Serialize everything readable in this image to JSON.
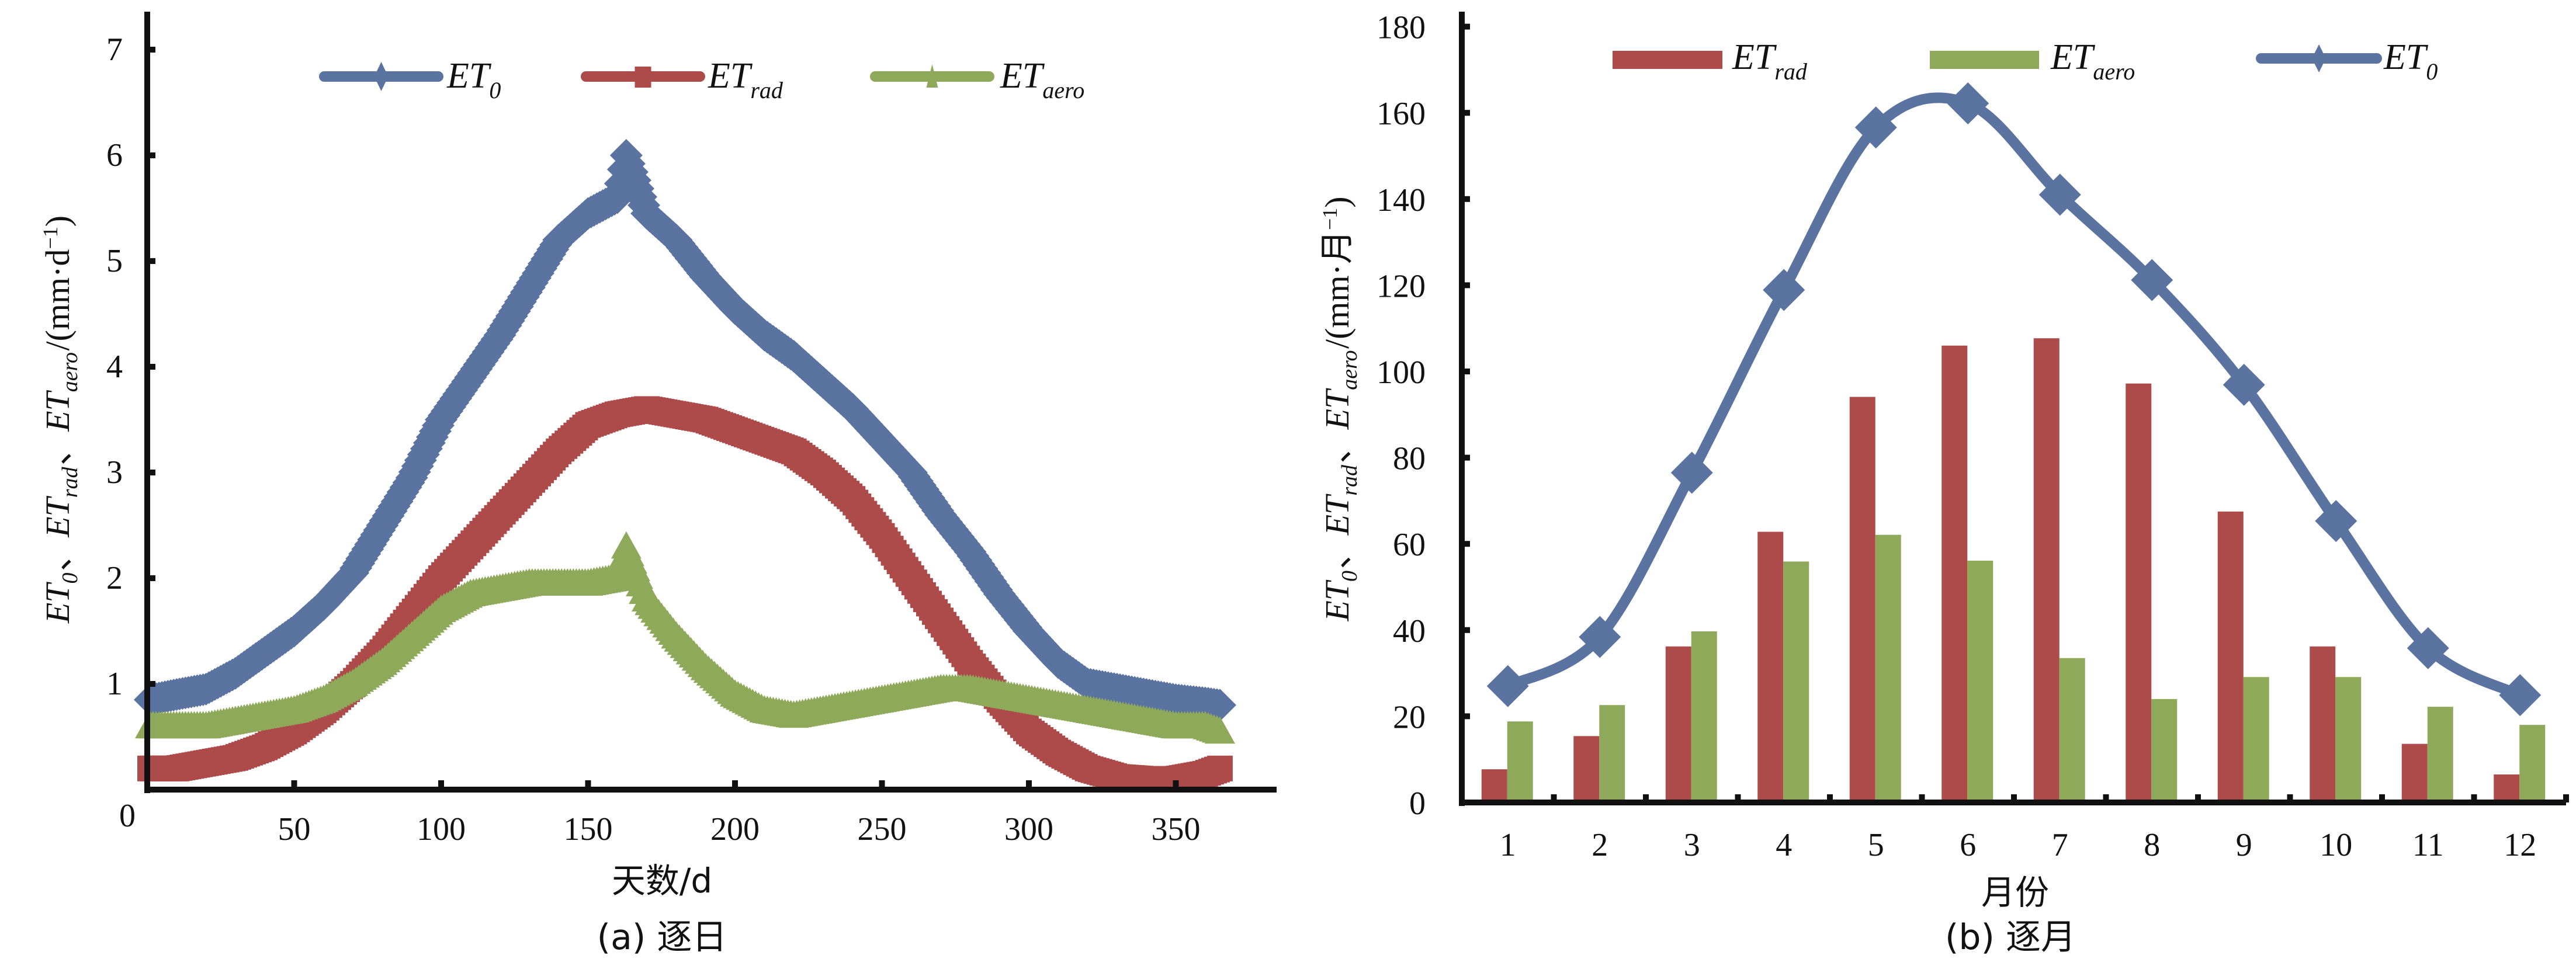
{
  "colors": {
    "et0": "#5a73a0",
    "rad": "#ad4b4b",
    "aero": "#8fa95a",
    "axis": "#111111"
  },
  "chart_data": [
    {
      "id": "daily",
      "type": "scatter",
      "subtitle": "(a) 逐日",
      "xlabel": "天数/d",
      "ylabel": {
        "parts": [
          {
            "main": "ET",
            "sub": "0"
          },
          {
            "sep": "、"
          },
          {
            "main": "ET",
            "sub": "rad"
          },
          {
            "sep": "、"
          },
          {
            "main": "ET",
            "sub": "aero"
          },
          {
            "unit": "/(mm·d",
            "sup": "−1",
            "close": ")"
          }
        ]
      },
      "xlim": [
        0,
        380
      ],
      "ylim": [
        0,
        7
      ],
      "x_ticks": [
        0,
        50,
        100,
        150,
        200,
        250,
        300,
        350
      ],
      "y_ticks": [
        1,
        2,
        3,
        4,
        5,
        6,
        7
      ],
      "legend_position": "top-center",
      "series": [
        {
          "name": "ET0",
          "legend_main": "ET",
          "legend_sub": "0",
          "marker": "diamond",
          "x": [
            1,
            10,
            20,
            30,
            40,
            50,
            60,
            70,
            80,
            90,
            100,
            110,
            120,
            130,
            140,
            150,
            160,
            163,
            170,
            180,
            190,
            200,
            210,
            220,
            230,
            240,
            250,
            260,
            270,
            280,
            290,
            300,
            310,
            320,
            330,
            340,
            350,
            360,
            365
          ],
          "values": [
            0.85,
            0.9,
            0.95,
            1.1,
            1.3,
            1.5,
            1.75,
            2.05,
            2.5,
            2.95,
            3.5,
            3.9,
            4.3,
            4.75,
            5.2,
            5.45,
            5.6,
            6.0,
            5.45,
            5.2,
            4.85,
            4.55,
            4.3,
            4.1,
            3.85,
            3.6,
            3.3,
            3.0,
            2.6,
            2.25,
            1.85,
            1.5,
            1.2,
            1.0,
            0.95,
            0.9,
            0.85,
            0.82,
            0.8
          ]
        },
        {
          "name": "ETrad",
          "legend_main": "ET",
          "legend_sub": "rad",
          "marker": "square",
          "x": [
            1,
            10,
            20,
            30,
            40,
            50,
            60,
            70,
            80,
            90,
            100,
            110,
            120,
            130,
            140,
            150,
            160,
            170,
            180,
            190,
            200,
            210,
            220,
            230,
            240,
            250,
            260,
            270,
            280,
            290,
            300,
            310,
            320,
            330,
            340,
            350,
            360,
            365
          ],
          "values": [
            0.2,
            0.2,
            0.25,
            0.3,
            0.4,
            0.55,
            0.75,
            1.0,
            1.3,
            1.65,
            2.0,
            2.3,
            2.6,
            2.9,
            3.2,
            3.45,
            3.55,
            3.6,
            3.55,
            3.5,
            3.4,
            3.3,
            3.2,
            3.0,
            2.75,
            2.4,
            2.0,
            1.6,
            1.2,
            0.85,
            0.55,
            0.35,
            0.2,
            0.12,
            0.1,
            0.1,
            0.15,
            0.2
          ]
        },
        {
          "name": "ETaero",
          "legend_main": "ET",
          "legend_sub": "aero",
          "marker": "triangle",
          "x": [
            1,
            10,
            20,
            30,
            40,
            50,
            60,
            70,
            80,
            90,
            100,
            110,
            120,
            130,
            140,
            150,
            160,
            163,
            170,
            180,
            190,
            200,
            210,
            220,
            230,
            240,
            250,
            260,
            270,
            280,
            290,
            300,
            310,
            320,
            330,
            340,
            350,
            360,
            365
          ],
          "values": [
            0.6,
            0.6,
            0.6,
            0.65,
            0.7,
            0.75,
            0.85,
            1.0,
            1.2,
            1.45,
            1.7,
            1.85,
            1.9,
            1.95,
            1.95,
            1.95,
            2.0,
            2.3,
            1.8,
            1.45,
            1.15,
            0.9,
            0.75,
            0.7,
            0.75,
            0.8,
            0.85,
            0.9,
            0.95,
            0.95,
            0.9,
            0.85,
            0.8,
            0.75,
            0.7,
            0.65,
            0.6,
            0.6,
            0.55
          ]
        }
      ]
    },
    {
      "id": "monthly",
      "type": "bar",
      "subtitle": "(b) 逐月",
      "xlabel": "月份",
      "ylabel": {
        "parts": [
          {
            "main": "ET",
            "sub": "0"
          },
          {
            "sep": "、"
          },
          {
            "main": "ET",
            "sub": "rad"
          },
          {
            "sep": "、"
          },
          {
            "main": "ET",
            "sub": "aero"
          },
          {
            "unit": "/(mm·月",
            "sup": "−1",
            "close": ")"
          }
        ]
      },
      "categories": [
        "1",
        "2",
        "3",
        "4",
        "5",
        "6",
        "7",
        "8",
        "9",
        "10",
        "11",
        "12"
      ],
      "ylim": [
        0,
        180
      ],
      "y_ticks": [
        0,
        20,
        40,
        60,
        80,
        100,
        120,
        140,
        160,
        180
      ],
      "legend_position": "top",
      "series": [
        {
          "name": "ETrad",
          "legend_main": "ET",
          "legend_sub": "rad",
          "type": "bar",
          "values": [
            7.7,
            15.4,
            36.2,
            62.8,
            94.1,
            106.0,
            107.7,
            97.2,
            67.5,
            36.2,
            13.6,
            6.5
          ]
        },
        {
          "name": "ETaero",
          "legend_main": "ET",
          "legend_sub": "aero",
          "type": "bar",
          "values": [
            18.8,
            22.6,
            39.7,
            55.9,
            62.1,
            56.1,
            33.5,
            24.0,
            29.1,
            29.1,
            22.2,
            18.0
          ]
        },
        {
          "name": "ET0",
          "legend_main": "ET",
          "legend_sub": "0",
          "type": "line",
          "marker": "diamond",
          "values": [
            27.0,
            38.4,
            76.5,
            118.9,
            156.6,
            162.2,
            141.0,
            121.2,
            96.9,
            65.3,
            35.8,
            24.9
          ]
        }
      ]
    }
  ]
}
